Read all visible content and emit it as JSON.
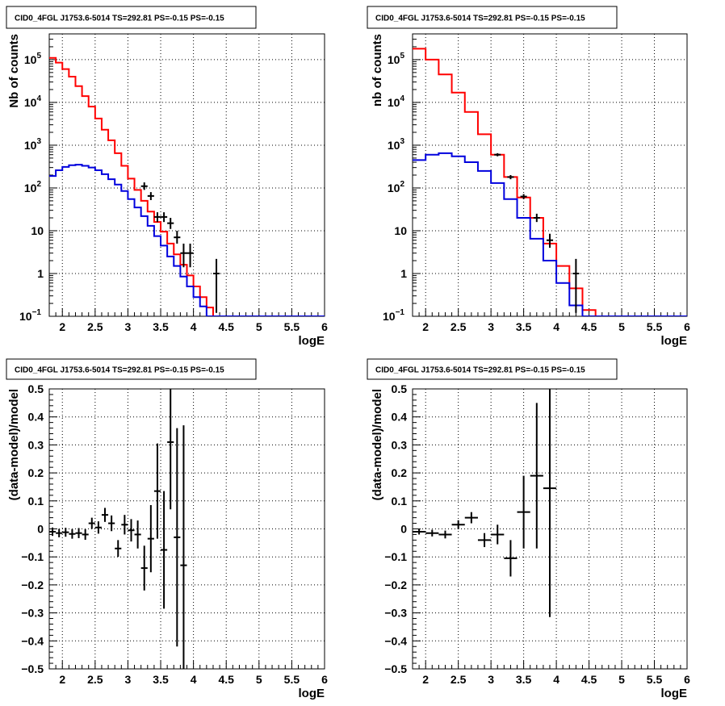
{
  "chart_data": [
    {
      "type": "histogram",
      "title": "CID0_4FGL J1753.6-5014 TS=292.81 PS=-0.15 PS=-0.15",
      "xlabel": "logE",
      "ylabel": "Nb of counts",
      "xlim": [
        1.8,
        6.0
      ],
      "ylim": [
        0.1,
        400000
      ],
      "yscale": "log",
      "grid": true,
      "x_ticks": [
        "2",
        "2.5",
        "3",
        "3.5",
        "4",
        "4.5",
        "5",
        "5.5",
        "6"
      ],
      "y_ticks": [
        {
          "value": 0.1,
          "base": "10",
          "exp": "−1"
        },
        {
          "value": 1,
          "label": "1"
        },
        {
          "value": 10,
          "label": "10"
        },
        {
          "value": 100,
          "base": "10",
          "exp": "2"
        },
        {
          "value": 1000,
          "base": "10",
          "exp": "3"
        },
        {
          "value": 10000,
          "base": "10",
          "exp": "4"
        },
        {
          "value": 100000,
          "base": "10",
          "exp": "5"
        }
      ],
      "bin_edges": [
        1.8,
        1.9,
        2.0,
        2.1,
        2.2,
        2.3,
        2.4,
        2.5,
        2.6,
        2.7,
        2.8,
        2.9,
        3.0,
        3.1,
        3.2,
        3.3,
        3.4,
        3.5,
        3.6,
        3.7,
        3.8,
        3.9,
        4.0,
        4.1,
        4.2,
        4.3,
        4.4,
        4.5,
        4.6,
        4.7,
        4.8,
        4.9,
        5.0,
        5.1,
        5.2,
        5.3,
        5.4,
        5.5,
        5.6,
        5.7,
        5.8,
        5.9,
        6.0
      ],
      "series": [
        {
          "color": "#ff0000",
          "values": [
            110000,
            85000,
            60000,
            40000,
            24000,
            14000,
            8000,
            4200,
            2300,
            1300,
            650,
            330,
            165,
            90,
            50,
            28,
            16,
            9.5,
            5,
            2.8,
            1.6,
            0.9,
            0.5,
            0.28,
            0.16,
            0.1,
            0.1,
            0.1,
            0.1,
            0.1,
            0.1,
            0.1,
            0.1,
            0.1,
            0.1,
            0.1,
            0.1,
            0.1,
            0.1,
            0.1,
            0.1,
            0.1
          ]
        },
        {
          "color": "#0000dd",
          "values": [
            190,
            260,
            310,
            340,
            350,
            330,
            300,
            260,
            210,
            160,
            120,
            85,
            55,
            35,
            22,
            13,
            7.5,
            4.5,
            2.5,
            1.5,
            0.85,
            0.5,
            0.28,
            0.17,
            0.1,
            0.1,
            0.1,
            0.1,
            0.1,
            0.1,
            0.1,
            0.1,
            0.1,
            0.1,
            0.1,
            0.1,
            0.1,
            0.1,
            0.1,
            0.1,
            0.1,
            0.1
          ]
        }
      ],
      "points": [
        {
          "x": 3.25,
          "y": 110,
          "lo": 90,
          "hi": 135
        },
        {
          "x": 3.35,
          "y": 65,
          "lo": 52,
          "hi": 80
        },
        {
          "x": 3.45,
          "y": 21,
          "lo": 16,
          "hi": 27
        },
        {
          "x": 3.55,
          "y": 21,
          "lo": 16,
          "hi": 27
        },
        {
          "x": 3.65,
          "y": 15,
          "lo": 11,
          "hi": 20
        },
        {
          "x": 3.75,
          "y": 7,
          "lo": 5,
          "hi": 10
        },
        {
          "x": 3.85,
          "y": 3,
          "lo": 1.4,
          "hi": 5
        },
        {
          "x": 3.95,
          "y": 3,
          "lo": 1.4,
          "hi": 5
        },
        {
          "x": 4.35,
          "y": 1,
          "lo": 0.12,
          "hi": 2.2
        }
      ]
    },
    {
      "type": "histogram",
      "title": "CID0_4FGL J1753.6-5014 TS=292.81 PS=-0.15 PS=-0.15",
      "xlabel": "logE",
      "ylabel": "nb of counts",
      "xlim": [
        1.8,
        6.0
      ],
      "ylim": [
        0.1,
        400000
      ],
      "yscale": "log",
      "grid": true,
      "x_ticks": [
        "2",
        "2.5",
        "3",
        "3.5",
        "4",
        "4.5",
        "5",
        "5.5",
        "6"
      ],
      "y_ticks": [
        {
          "value": 0.1,
          "base": "10",
          "exp": "−1"
        },
        {
          "value": 1,
          "label": "1"
        },
        {
          "value": 10,
          "label": "10"
        },
        {
          "value": 100,
          "base": "10",
          "exp": "2"
        },
        {
          "value": 1000,
          "base": "10",
          "exp": "3"
        },
        {
          "value": 10000,
          "base": "10",
          "exp": "4"
        },
        {
          "value": 100000,
          "base": "10",
          "exp": "5"
        }
      ],
      "bin_edges": [
        1.8,
        2.0,
        2.2,
        2.4,
        2.6,
        2.8,
        3.0,
        3.2,
        3.4,
        3.6,
        3.8,
        4.0,
        4.2,
        4.4,
        4.6,
        4.8,
        5.0,
        5.2,
        5.4,
        5.6,
        5.8,
        6.0
      ],
      "series": [
        {
          "color": "#ff0000",
          "values": [
            180000,
            100000,
            45000,
            17000,
            6000,
            1800,
            600,
            180,
            60,
            20,
            5,
            1.5,
            0.45,
            0.14,
            0.1,
            0.1,
            0.1,
            0.1,
            0.1,
            0.1,
            0.1
          ]
        },
        {
          "color": "#0000dd",
          "values": [
            450,
            600,
            650,
            550,
            400,
            250,
            130,
            55,
            20,
            6.5,
            2,
            0.6,
            0.18,
            0.1,
            0.1,
            0.1,
            0.1,
            0.1,
            0.1,
            0.1,
            0.1
          ]
        }
      ],
      "points": [
        {
          "x": 3.1,
          "y": 600,
          "lo": 550,
          "hi": 650
        },
        {
          "x": 3.3,
          "y": 180,
          "lo": 160,
          "hi": 200
        },
        {
          "x": 3.5,
          "y": 63,
          "lo": 55,
          "hi": 72
        },
        {
          "x": 3.7,
          "y": 20,
          "lo": 16,
          "hi": 25
        },
        {
          "x": 3.9,
          "y": 6,
          "lo": 4,
          "hi": 8.5
        },
        {
          "x": 4.3,
          "y": 1,
          "lo": 0.12,
          "hi": 2.2
        }
      ]
    },
    {
      "type": "scatter",
      "title": "CID0_4FGL J1753.6-5014 TS=292.81 PS=-0.15 PS=-0.15",
      "xlabel": "logE",
      "ylabel": "(data-model)/model",
      "xlim": [
        1.8,
        6.0
      ],
      "ylim": [
        -0.5,
        0.5
      ],
      "yscale": "linear",
      "grid": true,
      "x_ticks": [
        "2",
        "2.5",
        "3",
        "3.5",
        "4",
        "4.5",
        "5",
        "5.5",
        "6"
      ],
      "y_ticks": [
        {
          "value": 0.5,
          "label": "0.5"
        },
        {
          "value": 0.4,
          "label": "0.4"
        },
        {
          "value": 0.3,
          "label": "0.3"
        },
        {
          "value": 0.2,
          "label": "0.2"
        },
        {
          "value": 0.1,
          "label": "0.1"
        },
        {
          "value": 0,
          "label": "0"
        },
        {
          "value": -0.1,
          "label": "−0.1"
        },
        {
          "value": -0.2,
          "label": "−0.2"
        },
        {
          "value": -0.3,
          "label": "−0.3"
        },
        {
          "value": -0.4,
          "label": "−0.4"
        },
        {
          "value": -0.5,
          "label": "−0.5"
        }
      ],
      "xerr": 0.05,
      "points": [
        {
          "x": 1.85,
          "y": -0.01,
          "e": 0.015
        },
        {
          "x": 1.95,
          "y": -0.015,
          "e": 0.015
        },
        {
          "x": 2.05,
          "y": -0.012,
          "e": 0.016
        },
        {
          "x": 2.15,
          "y": -0.018,
          "e": 0.017
        },
        {
          "x": 2.25,
          "y": -0.015,
          "e": 0.018
        },
        {
          "x": 2.35,
          "y": -0.02,
          "e": 0.019
        },
        {
          "x": 2.45,
          "y": 0.02,
          "e": 0.02
        },
        {
          "x": 2.55,
          "y": 0.005,
          "e": 0.022
        },
        {
          "x": 2.65,
          "y": 0.05,
          "e": 0.025
        },
        {
          "x": 2.75,
          "y": 0.02,
          "e": 0.028
        },
        {
          "x": 2.85,
          "y": -0.07,
          "e": 0.03
        },
        {
          "x": 2.95,
          "y": 0.015,
          "e": 0.035
        },
        {
          "x": 3.05,
          "y": -0.005,
          "e": 0.04
        },
        {
          "x": 3.15,
          "y": -0.02,
          "e": 0.05
        },
        {
          "x": 3.25,
          "y": -0.14,
          "e": 0.08
        },
        {
          "x": 3.35,
          "y": -0.035,
          "e": 0.12
        },
        {
          "x": 3.45,
          "y": 0.135,
          "e": 0.17
        },
        {
          "x": 3.55,
          "y": -0.075,
          "e": 0.21
        },
        {
          "x": 3.65,
          "y": 0.31,
          "e": 0.24
        },
        {
          "x": 3.75,
          "y": -0.03,
          "e": 0.39
        },
        {
          "x": 3.85,
          "y": -0.13,
          "e": 0.5
        }
      ]
    },
    {
      "type": "scatter",
      "title": "CID0_4FGL J1753.6-5014 TS=292.81 PS=-0.15 PS=-0.15",
      "xlabel": "logE",
      "ylabel": "(data-model)/model",
      "xlim": [
        1.8,
        6.0
      ],
      "ylim": [
        -0.5,
        0.5
      ],
      "yscale": "linear",
      "grid": true,
      "x_ticks": [
        "2",
        "2.5",
        "3",
        "3.5",
        "4",
        "4.5",
        "5",
        "5.5",
        "6"
      ],
      "y_ticks": [
        {
          "value": 0.5,
          "label": "0.5"
        },
        {
          "value": 0.4,
          "label": "0.4"
        },
        {
          "value": 0.3,
          "label": "0.3"
        },
        {
          "value": 0.2,
          "label": "0.2"
        },
        {
          "value": 0.1,
          "label": "0.1"
        },
        {
          "value": 0,
          "label": "0"
        },
        {
          "value": -0.1,
          "label": "−0.1"
        },
        {
          "value": -0.2,
          "label": "−0.2"
        },
        {
          "value": -0.3,
          "label": "−0.3"
        },
        {
          "value": -0.4,
          "label": "−0.4"
        },
        {
          "value": -0.5,
          "label": "−0.5"
        }
      ],
      "xerr": 0.1,
      "points": [
        {
          "x": 1.9,
          "y": -0.01,
          "e": 0.01
        },
        {
          "x": 2.1,
          "y": -0.015,
          "e": 0.012
        },
        {
          "x": 2.3,
          "y": -0.02,
          "e": 0.014
        },
        {
          "x": 2.5,
          "y": 0.015,
          "e": 0.016
        },
        {
          "x": 2.7,
          "y": 0.04,
          "e": 0.02
        },
        {
          "x": 2.9,
          "y": -0.04,
          "e": 0.025
        },
        {
          "x": 3.1,
          "y": -0.02,
          "e": 0.035
        },
        {
          "x": 3.3,
          "y": -0.105,
          "e": 0.065
        },
        {
          "x": 3.5,
          "y": 0.06,
          "e": 0.13
        },
        {
          "x": 3.7,
          "y": 0.19,
          "e": 0.26
        },
        {
          "x": 3.9,
          "y": 0.145,
          "e": 0.46
        }
      ]
    }
  ]
}
